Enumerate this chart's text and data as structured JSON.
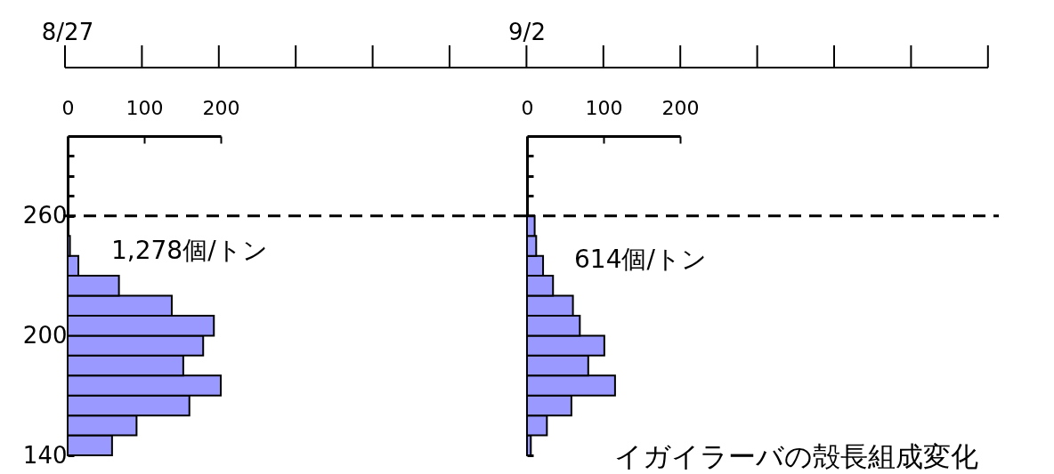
{
  "chart_data": [
    {
      "type": "histogram",
      "title": "8/27",
      "orientation": "horizontal",
      "color": "#9999ff",
      "bins": [
        140,
        150,
        160,
        170,
        180,
        190,
        200,
        210,
        220,
        230,
        240,
        250,
        260
      ],
      "values": [
        58,
        90,
        159,
        200,
        151,
        177,
        191,
        136,
        67,
        14,
        3,
        null
      ],
      "xlim": [
        0,
        200
      ],
      "xticks": [
        0,
        100,
        200
      ],
      "ylim": [
        140,
        300
      ],
      "yticks": [
        140,
        200,
        260,
        {
          "value": 270,
          "label": null
        },
        {
          "value": 280,
          "label": null
        },
        {
          "value": 290,
          "label": null
        }
      ],
      "ref_lines": [
        {
          "axis": "y",
          "value": 260,
          "line_style": "dashed",
          "color": "#000000"
        }
      ],
      "annotations": [
        "1,278個/トン"
      ]
    },
    {
      "type": "histogram",
      "title": "9/2",
      "orientation": "horizontal",
      "color": "#9999ff",
      "bins": [
        140,
        150,
        160,
        170,
        180,
        190,
        200,
        210,
        220,
        230,
        240,
        250,
        260
      ],
      "values": [
        5,
        26,
        58,
        115,
        80,
        101,
        69,
        60,
        34,
        21,
        12,
        10
      ],
      "xlim": [
        0,
        200
      ],
      "xticks": [
        0,
        100,
        200
      ],
      "ylim": [
        140,
        300
      ],
      "yticks": [
        140,
        200,
        260,
        {
          "value": 270,
          "label": null
        },
        {
          "value": 280,
          "label": null
        },
        {
          "value": 290,
          "label": null
        }
      ],
      "tick_labels": "x",
      "ref_lines": [
        {
          "axis": "y",
          "value": 260,
          "line_style": "dashed",
          "color": "#000000"
        }
      ],
      "annotations": [
        "614個/トン",
        "イガイラーバの殻長組成変化"
      ]
    }
  ]
}
